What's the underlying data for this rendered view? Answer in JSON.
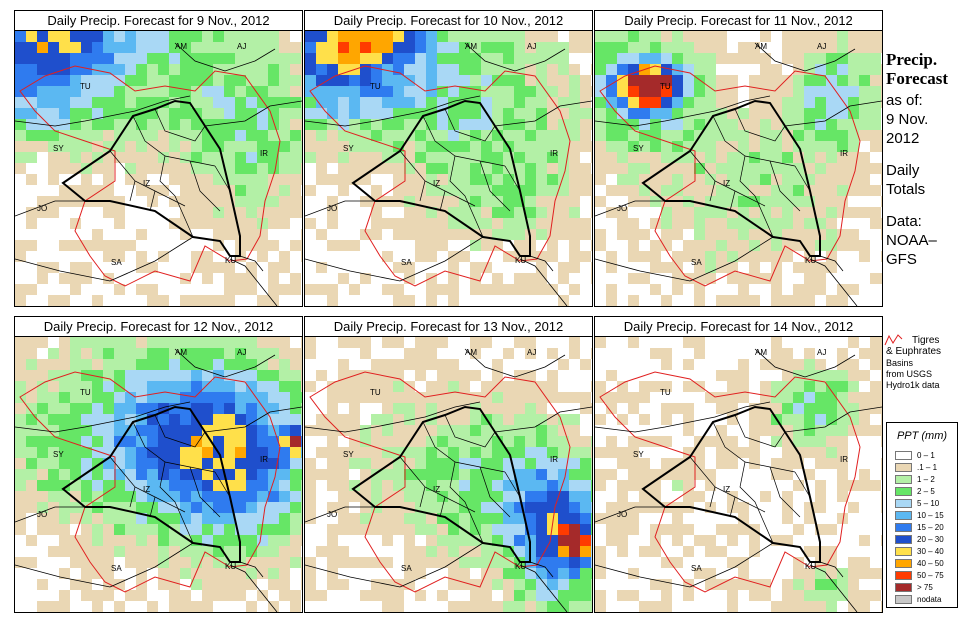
{
  "panels": [
    {
      "title": "Daily Precip. Forecast for  9 Nov., 2012",
      "pattern": "p9"
    },
    {
      "title": "Daily Precip. Forecast for  10 Nov., 2012",
      "pattern": "p10"
    },
    {
      "title": "Daily Precip. Forecast for  11 Nov., 2012",
      "pattern": "p11"
    },
    {
      "title": "Daily Precip. Forecast for  12 Nov., 2012",
      "pattern": "p12"
    },
    {
      "title": "Daily Precip. Forecast for  13 Nov., 2012",
      "pattern": "p13"
    },
    {
      "title": "Daily Precip. Forecast for  14 Nov., 2012",
      "pattern": "p14"
    }
  ],
  "map_labels": {
    "AM": "AM",
    "AJ": "AJ",
    "TU": "TU",
    "SY": "SY",
    "IR": "IR",
    "IZ": "IZ",
    "JO": "JO",
    "SA": "SA",
    "KU": "KU"
  },
  "sidebar": {
    "title_line1": "Precip.",
    "title_line2": "Forecast",
    "asof": "as of:",
    "date_line1": "9 Nov.",
    "date_line2": "2012",
    "totals_line1": "Daily",
    "totals_line2": "Totals",
    "data_line1": "Data:",
    "data_line2": "NOAA–",
    "data_line3": "GFS"
  },
  "basin_legend": {
    "line1": "Tigres",
    "line2": "& Euphrates",
    "line3": "Basins",
    "line4": "from USGS",
    "line5": "Hydro1k data"
  },
  "legend": {
    "title": "PPT (mm)",
    "items": [
      {
        "label": "0 – 1",
        "color": "#ffffff"
      },
      {
        "label": ".1 – 1",
        "color": "#ead7b4"
      },
      {
        "label": "1 – 2",
        "color": "#b3f0a6"
      },
      {
        "label": "2 – 5",
        "color": "#66e666"
      },
      {
        "label": "5 – 10",
        "color": "#a9d8f5"
      },
      {
        "label": "10 – 15",
        "color": "#5bb8f2"
      },
      {
        "label": "15 – 20",
        "color": "#2f7bef"
      },
      {
        "label": "20 – 30",
        "color": "#1f4fcc"
      },
      {
        "label": "30 – 40",
        "color": "#ffe04a"
      },
      {
        "label": "40 – 50",
        "color": "#ffa600"
      },
      {
        "label": "50 – 75",
        "color": "#ff3b00"
      },
      {
        "label": "> 75",
        "color": "#a52a2a"
      },
      {
        "label": "nodata",
        "color": "#c8c8c8"
      }
    ]
  }
}
